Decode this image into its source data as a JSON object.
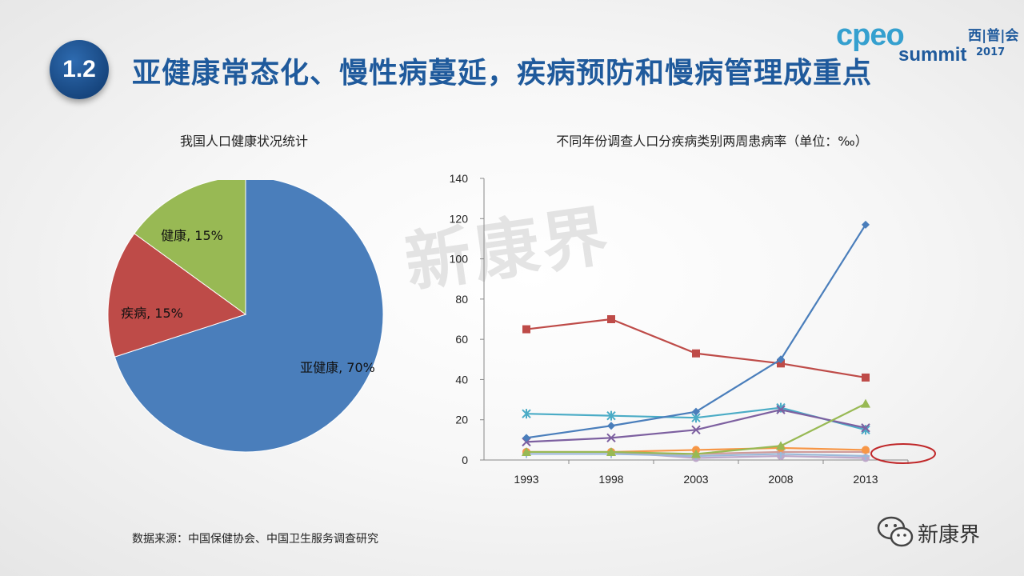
{
  "header": {
    "badge": "1.2",
    "title": "亚健康常态化、慢性病蔓延，疾病预防和慢病管理成重点"
  },
  "logo": {
    "brand": "cpeo",
    "cn": "西|普|会",
    "summit": "summit",
    "year": "2017"
  },
  "watermark": "新康界",
  "wechat": {
    "label": "新康界",
    "icon": "wechat-icon"
  },
  "source": "数据来源：中国保健协会、中国卫生服务调查研究",
  "colors": {
    "title": "#1f5a9c",
    "badge": "#17467f",
    "highlight_ellipse": "#c0282a"
  },
  "chart_data": [
    {
      "type": "pie",
      "title": "我国人口健康状况统计",
      "slices": [
        {
          "label": "亚健康, 70%",
          "value": 70,
          "color": "#4a7ebb"
        },
        {
          "label": "疾病, 15%",
          "value": 15,
          "color": "#be4b48"
        },
        {
          "label": "健康, 15%",
          "value": 15,
          "color": "#98b954"
        }
      ]
    },
    {
      "type": "line",
      "title": "不同年份调查人口分疾病类别两周患病率（单位：‰）",
      "x": [
        "1993",
        "1998",
        "2003",
        "2008",
        "2013"
      ],
      "ylim": [
        0,
        140
      ],
      "yticks": [
        0,
        20,
        40,
        60,
        80,
        100,
        120,
        140
      ],
      "grid": false,
      "series": [
        {
          "marker": "diamond",
          "color": "#4a7ebb",
          "values": [
            11,
            17,
            24,
            50,
            117
          ]
        },
        {
          "marker": "square",
          "color": "#be4b48",
          "values": [
            65,
            70,
            53,
            48,
            41
          ]
        },
        {
          "marker": "triangle",
          "color": "#98b954",
          "values": [
            4,
            4,
            3,
            7,
            28
          ]
        },
        {
          "marker": "x",
          "color": "#7d60a0",
          "values": [
            9,
            11,
            15,
            25,
            16
          ]
        },
        {
          "marker": "star",
          "color": "#4bacc6",
          "values": [
            23,
            22,
            21,
            26,
            15
          ]
        },
        {
          "marker": "circle",
          "color": "#f79646",
          "values": [
            4,
            4,
            5,
            6,
            5
          ]
        },
        {
          "marker": "plus",
          "color": "#9cb9d9",
          "values": [
            3,
            3,
            2,
            3,
            2
          ]
        },
        {
          "marker": "dash",
          "color": "#cf9b9a",
          "values": [
            3,
            3,
            3,
            4,
            4
          ]
        },
        {
          "marker": "circle",
          "color": "#bda8c9",
          "values": [
            4,
            4,
            1,
            2,
            1
          ]
        }
      ]
    }
  ]
}
